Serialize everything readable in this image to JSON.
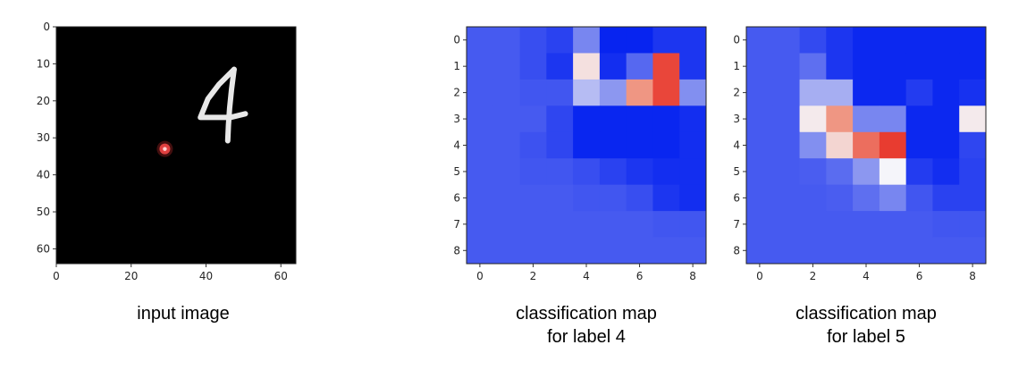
{
  "chart_data": [
    {
      "type": "image",
      "caption": [
        "input image"
      ],
      "background": "#000000",
      "xlim": [
        0,
        64
      ],
      "ylim": [
        64,
        0
      ],
      "xticks": [
        0,
        20,
        40,
        60
      ],
      "yticks": [
        0,
        10,
        20,
        30,
        40,
        50,
        60
      ],
      "strokes": [
        [
          [
            47.5,
            11.5
          ],
          [
            43.5,
            15.5
          ],
          [
            40.5,
            19.5
          ],
          [
            38.5,
            24.5
          ],
          [
            41.5,
            24.5
          ],
          [
            46.5,
            24.5
          ],
          [
            50.5,
            23.5
          ]
        ],
        [
          [
            47.5,
            11.5
          ],
          [
            46.8,
            17.0
          ],
          [
            46.3,
            22.0
          ],
          [
            46.0,
            26.5
          ],
          [
            45.8,
            30.8
          ]
        ]
      ],
      "marker": {
        "x": 29.0,
        "y": 33.0,
        "color": "#e04040"
      }
    },
    {
      "type": "heatmap",
      "caption": [
        "classification map",
        "for label 4"
      ],
      "xticks": [
        0,
        2,
        4,
        6,
        8
      ],
      "yticks": [
        0,
        1,
        2,
        3,
        4,
        5,
        6,
        7,
        8
      ],
      "values": [
        [
          -0.7,
          -0.7,
          -0.76,
          -0.82,
          -0.45,
          -0.97,
          -0.97,
          -0.88,
          -0.88
        ],
        [
          -0.7,
          -0.7,
          -0.76,
          -0.88,
          0.1,
          -0.92,
          -0.62,
          0.85,
          -0.88
        ],
        [
          -0.7,
          -0.7,
          -0.72,
          -0.72,
          -0.2,
          -0.35,
          0.45,
          0.85,
          -0.4
        ],
        [
          -0.7,
          -0.7,
          -0.7,
          -0.8,
          -0.96,
          -0.96,
          -0.96,
          -0.96,
          -0.92
        ],
        [
          -0.7,
          -0.7,
          -0.74,
          -0.8,
          -0.96,
          -0.96,
          -0.96,
          -0.96,
          -0.92
        ],
        [
          -0.7,
          -0.7,
          -0.72,
          -0.72,
          -0.76,
          -0.82,
          -0.88,
          -0.92,
          -0.92
        ],
        [
          -0.7,
          -0.7,
          -0.7,
          -0.7,
          -0.72,
          -0.72,
          -0.76,
          -0.88,
          -0.92
        ],
        [
          -0.7,
          -0.7,
          -0.7,
          -0.7,
          -0.7,
          -0.7,
          -0.7,
          -0.72,
          -0.72
        ],
        [
          -0.7,
          -0.7,
          -0.7,
          -0.7,
          -0.7,
          -0.7,
          -0.7,
          -0.7,
          -0.7
        ]
      ]
    },
    {
      "type": "heatmap",
      "caption": [
        "classification map",
        "for label 5"
      ],
      "xticks": [
        0,
        2,
        4,
        6,
        8
      ],
      "yticks": [
        0,
        1,
        2,
        3,
        4,
        5,
        6,
        7,
        8
      ],
      "values": [
        [
          -0.7,
          -0.7,
          -0.78,
          -0.88,
          -0.95,
          -0.95,
          -0.95,
          -0.95,
          -0.95
        ],
        [
          -0.7,
          -0.7,
          -0.58,
          -0.88,
          -0.95,
          -0.95,
          -0.95,
          -0.95,
          -0.95
        ],
        [
          -0.7,
          -0.7,
          -0.25,
          -0.25,
          -0.95,
          -0.95,
          -0.85,
          -0.95,
          -0.9
        ],
        [
          -0.7,
          -0.7,
          0.05,
          0.45,
          -0.45,
          -0.45,
          -0.95,
          -0.95,
          0.05
        ],
        [
          -0.7,
          -0.7,
          -0.4,
          0.15,
          0.65,
          0.9,
          -0.95,
          -0.95,
          -0.8
        ],
        [
          -0.7,
          -0.7,
          -0.68,
          -0.6,
          -0.35,
          0.0,
          -0.85,
          -0.92,
          -0.82
        ],
        [
          -0.7,
          -0.7,
          -0.7,
          -0.68,
          -0.58,
          -0.45,
          -0.72,
          -0.82,
          -0.82
        ],
        [
          -0.7,
          -0.7,
          -0.7,
          -0.7,
          -0.7,
          -0.7,
          -0.7,
          -0.72,
          -0.72
        ],
        [
          -0.7,
          -0.7,
          -0.7,
          -0.7,
          -0.7,
          -0.7,
          -0.7,
          -0.7,
          -0.7
        ]
      ]
    }
  ]
}
